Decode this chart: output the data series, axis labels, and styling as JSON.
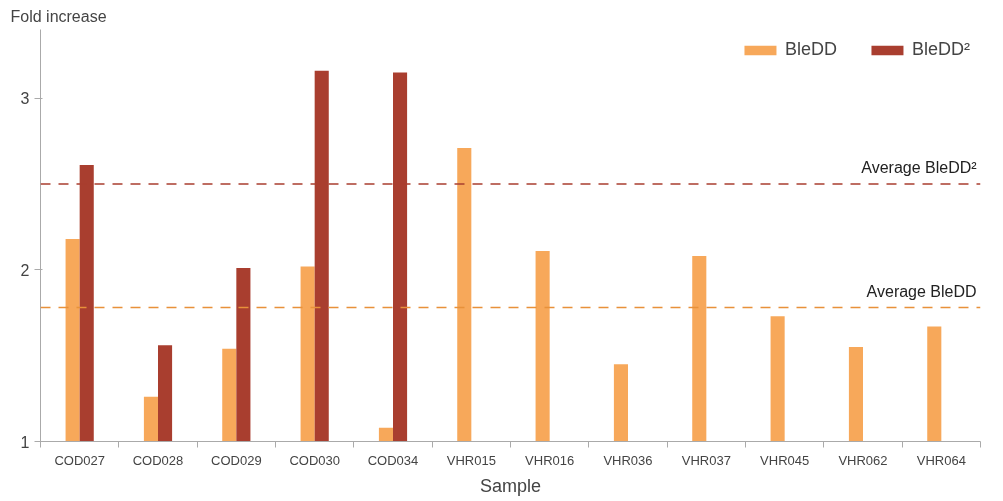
{
  "chart_data": {
    "type": "bar",
    "ylabel": "Fold increase",
    "xlabel": "Sample",
    "categories": [
      "COD027",
      "COD028",
      "COD029",
      "COD030",
      "COD034",
      "VHR015",
      "VHR016",
      "VHR036",
      "VHR037",
      "VHR045",
      "VHR062",
      "VHR064"
    ],
    "series": [
      {
        "name": "BleDD",
        "color": "#f7a85a",
        "values": [
          2.18,
          1.26,
          1.54,
          2.02,
          1.08,
          2.71,
          2.11,
          1.45,
          2.08,
          1.73,
          1.55,
          1.67
        ]
      },
      {
        "name": "BleDD²",
        "color": "#a93e2f",
        "values": [
          2.61,
          1.56,
          2.01,
          3.16,
          3.15,
          null,
          null,
          null,
          null,
          null,
          null,
          null
        ]
      }
    ],
    "ylim": [
      1,
      3.4
    ],
    "yticks": [
      1,
      2,
      3
    ],
    "ref_lines": [
      {
        "axis": "y",
        "value": 2.5,
        "label": "Average BleDD²",
        "color": "#a93e2f",
        "line_style": "dashed"
      },
      {
        "axis": "y",
        "value": 1.78,
        "label": "Average BleDD",
        "color": "#e8913a",
        "line_style": "dashed"
      }
    ],
    "grid": false,
    "legend": "top right"
  }
}
